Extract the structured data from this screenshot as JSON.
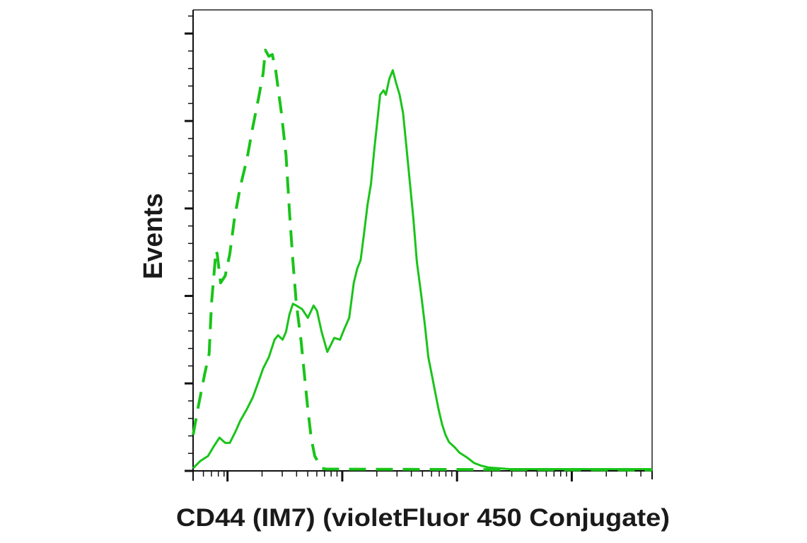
{
  "chart_data": {
    "type": "line",
    "title": "",
    "xlabel": "CD44 (IM7) (violetFluor 450 Conjugate)",
    "ylabel": "Events",
    "x_scale": "logicle (biexponential), no tick labels",
    "y_scale": "linear, no tick labels",
    "xlim": [
      0.7,
      4.7
    ],
    "ylim": [
      0,
      5.27
    ],
    "grid": false,
    "legend": "none",
    "x_major_ticks": [
      1,
      2,
      3,
      4
    ],
    "x_low_ticks": [
      0.7,
      0.79,
      0.86,
      0.92,
      0.97
    ],
    "y_major_ticks": [
      0,
      1,
      2,
      3,
      4,
      5
    ],
    "y_minor_step": 0.2,
    "series": [
      {
        "style": "solid",
        "color": "#19c419",
        "x": [
          0.7,
          0.76,
          0.83,
          0.88,
          0.93,
          0.98,
          1.02,
          1.07,
          1.11,
          1.17,
          1.22,
          1.27,
          1.31,
          1.36,
          1.41,
          1.44,
          1.48,
          1.51,
          1.54,
          1.57,
          1.6,
          1.65,
          1.7,
          1.75,
          1.78,
          1.82,
          1.87,
          1.9,
          1.93,
          1.98,
          2.02,
          2.06,
          2.1,
          2.13,
          2.16,
          2.19,
          2.22,
          2.25,
          2.28,
          2.33,
          2.36,
          2.38,
          2.41,
          2.44,
          2.47,
          2.5,
          2.53,
          2.56,
          2.59,
          2.62,
          2.65,
          2.69,
          2.72,
          2.75,
          2.78,
          2.81,
          2.84,
          2.87,
          2.9,
          2.93,
          2.98,
          3.02,
          3.09,
          3.15,
          3.21,
          3.27,
          3.46,
          3.95,
          4.7
        ],
        "y": [
          0.03,
          0.11,
          0.17,
          0.28,
          0.38,
          0.32,
          0.32,
          0.45,
          0.57,
          0.71,
          0.84,
          1.02,
          1.17,
          1.3,
          1.5,
          1.55,
          1.5,
          1.59,
          1.79,
          1.91,
          1.89,
          1.85,
          1.75,
          1.89,
          1.83,
          1.59,
          1.36,
          1.44,
          1.52,
          1.5,
          1.63,
          1.75,
          2.15,
          2.31,
          2.41,
          2.72,
          3.04,
          3.28,
          3.69,
          4.3,
          4.35,
          4.3,
          4.48,
          4.58,
          4.43,
          4.3,
          4.09,
          3.69,
          3.28,
          2.88,
          2.39,
          1.99,
          1.67,
          1.3,
          1.1,
          0.9,
          0.7,
          0.53,
          0.41,
          0.33,
          0.27,
          0.21,
          0.15,
          0.09,
          0.06,
          0.04,
          0.02,
          0.02,
          0.02
        ]
      },
      {
        "style": "dashed",
        "color": "#19c419",
        "x": [
          0.7,
          0.74,
          0.8,
          0.84,
          0.86,
          0.9,
          0.91,
          0.94,
          0.98,
          1.02,
          1.06,
          1.11,
          1.17,
          1.22,
          1.27,
          1.31,
          1.33,
          1.36,
          1.39,
          1.42,
          1.47,
          1.51,
          1.54,
          1.57,
          1.6,
          1.64,
          1.67,
          1.7,
          1.73,
          1.76,
          1.82,
          1.86,
          4.7
        ],
        "y": [
          0.41,
          0.7,
          1.1,
          1.34,
          1.91,
          2.52,
          2.48,
          2.15,
          2.23,
          2.48,
          2.88,
          3.24,
          3.57,
          3.93,
          4.26,
          4.54,
          4.81,
          4.74,
          4.76,
          4.58,
          4.09,
          3.61,
          2.96,
          2.39,
          1.91,
          1.5,
          1.1,
          0.7,
          0.37,
          0.17,
          0.03,
          0.02,
          0.01
        ]
      }
    ]
  }
}
